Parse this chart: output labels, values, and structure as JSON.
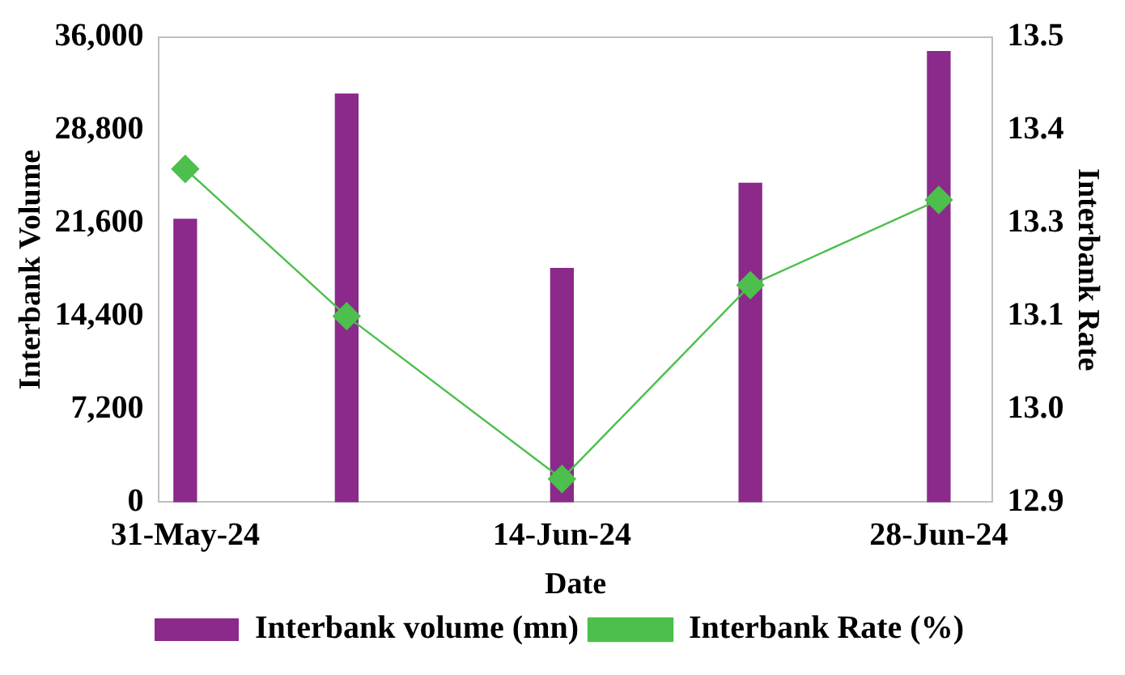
{
  "chart_data": {
    "type": "bar",
    "xlabel": "Date",
    "ylabel": "Interbank Volume",
    "y2label": "Interbank Rate",
    "x": [
      "2024-05-31",
      "2024-06-06",
      "2024-06-14",
      "2024-06-21",
      "2024-06-28"
    ],
    "xlim": [
      "2024-05-30",
      "2024-06-30"
    ],
    "xticks": [
      {
        "value": "2024-05-31",
        "label": "31-May-24"
      },
      {
        "value": "2024-06-14",
        "label": "14-Jun-24"
      },
      {
        "value": "2024-06-28",
        "label": "28-Jun-24"
      }
    ],
    "ylim": [
      0,
      36000
    ],
    "yticks": [
      {
        "value": 0,
        "label": "0"
      },
      {
        "value": 7200,
        "label": "7,200"
      },
      {
        "value": 14400,
        "label": "14,400"
      },
      {
        "value": 21600,
        "label": "21,600"
      },
      {
        "value": 28800,
        "label": "28,800"
      },
      {
        "value": 36000,
        "label": "36,000"
      }
    ],
    "y2lim": [
      12.9,
      13.5
    ],
    "y2ticks": [
      {
        "value": 12.9,
        "label": "12.9"
      },
      {
        "value": 13.02,
        "label": "13.0"
      },
      {
        "value": 13.14,
        "label": "13.1"
      },
      {
        "value": 13.26,
        "label": "13.3"
      },
      {
        "value": 13.38,
        "label": "13.4"
      },
      {
        "value": 13.5,
        "label": "13.5"
      }
    ],
    "series": [
      {
        "name": "Interbank volume (mn)",
        "color": "#8b2a8b",
        "values": [
          21900,
          31600,
          18100,
          24700,
          34900
        ]
      },
      {
        "name": "Interbank Rate (%)",
        "type": "line",
        "axis": "y2",
        "color": "#4cbf4c",
        "marker": "diamond",
        "values": [
          13.33,
          13.14,
          12.93,
          13.18,
          13.29
        ]
      }
    ],
    "legend": "bottom",
    "grid": false
  }
}
